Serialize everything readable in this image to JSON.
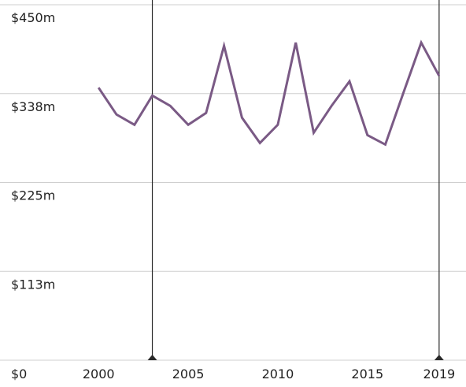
{
  "chart_data": {
    "type": "line",
    "title": "",
    "xlabel": "",
    "ylabel": "",
    "xlim": [
      1994.5,
      2020.5
    ],
    "ylim": [
      0,
      450
    ],
    "y_ticks": [
      {
        "value": 0,
        "label": "$0"
      },
      {
        "value": 112.5,
        "label": "$113m"
      },
      {
        "value": 225,
        "label": "$225m"
      },
      {
        "value": 337.5,
        "label": "$338m"
      },
      {
        "value": 450,
        "label": "$450m"
      }
    ],
    "x_ticks": [
      {
        "value": 2000,
        "label": "2000"
      },
      {
        "value": 2005,
        "label": "2005"
      },
      {
        "value": 2010,
        "label": "2010"
      },
      {
        "value": 2015,
        "label": "2015"
      },
      {
        "value": 2019,
        "label": "2019"
      }
    ],
    "markers": [
      2003,
      2019
    ],
    "grid": true,
    "series": [
      {
        "color": "#7a5a85",
        "x": [
          2000,
          2001,
          2002,
          2003,
          2004,
          2005,
          2006,
          2007,
          2008,
          2009,
          2010,
          2011,
          2012,
          2013,
          2014,
          2015,
          2016,
          2017,
          2018,
          2019
        ],
        "values": [
          345,
          311,
          298,
          335,
          322,
          298,
          313,
          398,
          307,
          275,
          298,
          402,
          288,
          322,
          353,
          285,
          273,
          338,
          402,
          360
        ]
      }
    ]
  }
}
